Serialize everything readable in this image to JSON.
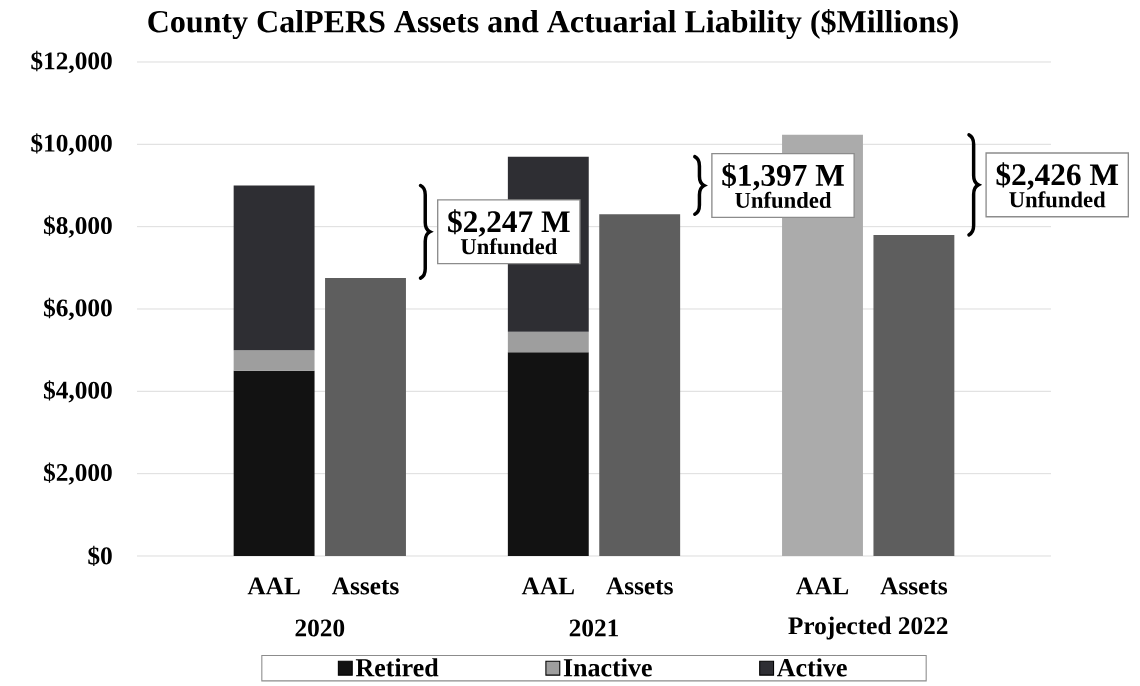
{
  "chart_data": {
    "type": "bar",
    "title": "County CalPERS Assets and Actuarial Liability ($Millions)",
    "categories": [
      "AAL",
      "Assets",
      null,
      "AAL",
      "Assets",
      null,
      "AAL",
      "Assets"
    ],
    "series": [
      {
        "name": "Retired",
        "color": "#121212",
        "values": [
          4500,
          null,
          null,
          4950,
          null,
          null,
          null,
          null
        ]
      },
      {
        "name": "Inactive",
        "color": "#9e9e9e",
        "values": [
          500,
          null,
          null,
          500,
          null,
          null,
          null,
          null
        ]
      },
      {
        "name": "Active",
        "color": "#2e2e33",
        "values": [
          4000,
          null,
          null,
          4250,
          null,
          null,
          null,
          null
        ]
      },
      {
        "color": "#5e5e5e",
        "values": [
          null,
          6750,
          null,
          null,
          8300,
          null,
          null,
          7800
        ]
      },
      {
        "color": "#ababab",
        "values": [
          null,
          null,
          null,
          null,
          null,
          null,
          10230,
          null
        ]
      }
    ],
    "stacked": true,
    "ylim": [
      0,
      12000
    ],
    "yticks": [
      {
        "value": 0,
        "label": "$0"
      },
      {
        "value": 2000,
        "label": "$2,000"
      },
      {
        "value": 4000,
        "label": "$4,000"
      },
      {
        "value": 6000,
        "label": "$6,000"
      },
      {
        "value": 8000,
        "label": "$8,000"
      },
      {
        "value": 10000,
        "label": "$10,000"
      },
      {
        "value": 12000,
        "label": "$12,000"
      }
    ],
    "grid": "y",
    "legend": "bottom",
    "annotations": [
      "2020",
      "2021",
      "Projected 2022",
      "$2,247 M",
      "Unfunded",
      "$1,397 M",
      "Unfunded",
      "$2,426 M",
      "Unfunded"
    ]
  }
}
